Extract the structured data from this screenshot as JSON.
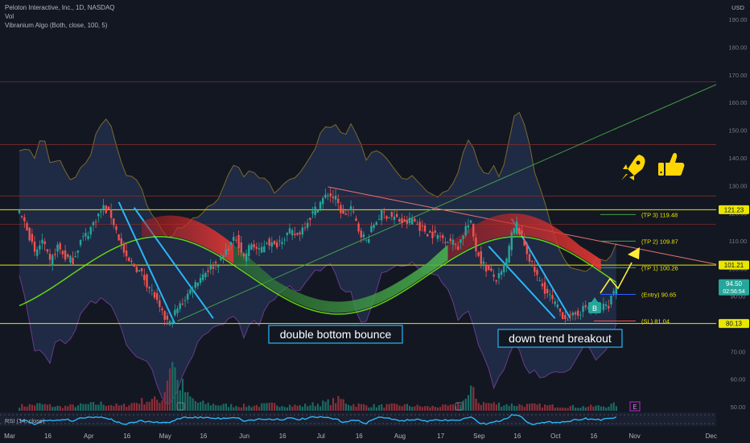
{
  "legend": {
    "symbol": "Peloton Interactive, Inc., 1D, NASDAQ",
    "vol": "Vol",
    "indicator": "Vibranium Algo (Both, close, 100, 5)"
  },
  "currency": "USD",
  "rsi_label": "RSI (14, close)",
  "chart_data": {
    "type": "candlestick",
    "ylim": [
      45,
      195
    ],
    "y_ticks": [
      "190.00",
      "180.00",
      "170.00",
      "160.00",
      "150.00",
      "140.00",
      "130.00",
      "120.00",
      "110.00",
      "100.00",
      "90.00",
      "80.00",
      "70.00",
      "60.00",
      "50.00"
    ],
    "y_tick_values": [
      190,
      180,
      170,
      160,
      150,
      140,
      130,
      120,
      110,
      100,
      90,
      80,
      70,
      60,
      50
    ],
    "x_ticks": [
      "Mar",
      "16",
      "Apr",
      "16",
      "May",
      "16",
      "Jun",
      "16",
      "Jul",
      "16",
      "Aug",
      "17",
      "Sep",
      "16",
      "Oct",
      "16",
      "Nov",
      "Dec"
    ],
    "x_tick_days": [
      0,
      15,
      31,
      46,
      61,
      76,
      92,
      107,
      122,
      137,
      153,
      169,
      184,
      199,
      214,
      229,
      245,
      275
    ],
    "price_labels": [
      {
        "value": 121.23,
        "text": "121.23",
        "color": "#e9e600",
        "text_color": "#131722"
      },
      {
        "value": 101.21,
        "text": "101.21",
        "color": "#e9e600",
        "text_color": "#131722"
      },
      {
        "value": 94.5,
        "text": "94.50",
        "sub": "02:56:54",
        "color": "#26a69a",
        "text_color": "#ffffff"
      },
      {
        "value": 80.13,
        "text": "80.13",
        "color": "#e9e600",
        "text_color": "#131722"
      }
    ],
    "levels": [
      {
        "label": "(TP 3) 119.48",
        "value": 119.48
      },
      {
        "label": "(TP 2) 109.87",
        "value": 109.87
      },
      {
        "label": "(TP 1) 100.26",
        "value": 100.26
      },
      {
        "label": "(Entry) 90.65",
        "value": 90.65
      },
      {
        "label": "(SL) 81.04",
        "value": 81.04
      }
    ],
    "horizontal_lines": [
      167.5,
      144.8,
      126.2,
      121.23,
      116.0,
      101.21,
      80.13
    ],
    "annotations": [
      "double bottom bounce",
      "down trend breakout"
    ],
    "markers": {
      "buy": "B",
      "earnings": "E"
    },
    "closes": [
      [
        0,
        120
      ],
      [
        3,
        115
      ],
      [
        6,
        105
      ],
      [
        9,
        110
      ],
      [
        12,
        102
      ],
      [
        15,
        108
      ],
      [
        18,
        104
      ],
      [
        21,
        103
      ],
      [
        24,
        110
      ],
      [
        27,
        113
      ],
      [
        30,
        118
      ],
      [
        33,
        122
      ],
      [
        36,
        119
      ],
      [
        39,
        111
      ],
      [
        42,
        103
      ],
      [
        45,
        101
      ],
      [
        48,
        98
      ],
      [
        51,
        93
      ],
      [
        53,
        90
      ],
      [
        55,
        85
      ],
      [
        57,
        82
      ],
      [
        59,
        80
      ],
      [
        61,
        84
      ],
      [
        64,
        88
      ],
      [
        67,
        92
      ],
      [
        70,
        96
      ],
      [
        73,
        99
      ],
      [
        76,
        101
      ],
      [
        79,
        103
      ],
      [
        82,
        108
      ],
      [
        85,
        111
      ],
      [
        88,
        104
      ],
      [
        91,
        109
      ],
      [
        94,
        106
      ],
      [
        97,
        110
      ],
      [
        100,
        108
      ],
      [
        103,
        111
      ],
      [
        106,
        113
      ],
      [
        109,
        112
      ],
      [
        112,
        116
      ],
      [
        115,
        120
      ],
      [
        118,
        124
      ],
      [
        121,
        127
      ],
      [
        124,
        125
      ],
      [
        127,
        119
      ],
      [
        130,
        122
      ],
      [
        133,
        114
      ],
      [
        136,
        110
      ],
      [
        139,
        116
      ],
      [
        142,
        120
      ],
      [
        145,
        119
      ],
      [
        148,
        118
      ],
      [
        151,
        116
      ],
      [
        154,
        118
      ],
      [
        157,
        115
      ],
      [
        160,
        113
      ],
      [
        163,
        112
      ],
      [
        166,
        111
      ],
      [
        169,
        110
      ],
      [
        172,
        108
      ],
      [
        175,
        115
      ],
      [
        177,
        116
      ],
      [
        179,
        107
      ],
      [
        181,
        103
      ],
      [
        183,
        100
      ],
      [
        185,
        98
      ],
      [
        187,
        96
      ],
      [
        189,
        98
      ],
      [
        191,
        103
      ],
      [
        193,
        112
      ],
      [
        195,
        116
      ],
      [
        197,
        111
      ],
      [
        199,
        106
      ],
      [
        201,
        101
      ],
      [
        204,
        95
      ],
      [
        207,
        91
      ],
      [
        210,
        87
      ],
      [
        213,
        83
      ],
      [
        216,
        82
      ],
      [
        219,
        84
      ],
      [
        222,
        86
      ],
      [
        225,
        85
      ],
      [
        228,
        86
      ],
      [
        231,
        87
      ],
      [
        234,
        94.5
      ]
    ],
    "volume_profile": [
      [
        0,
        6
      ],
      [
        8,
        8
      ],
      [
        16,
        5
      ],
      [
        24,
        7
      ],
      [
        32,
        9
      ],
      [
        40,
        6
      ],
      [
        48,
        12
      ],
      [
        56,
        14
      ],
      [
        60,
        70
      ],
      [
        62,
        35
      ],
      [
        64,
        30
      ],
      [
        66,
        18
      ],
      [
        70,
        10
      ],
      [
        80,
        7
      ],
      [
        90,
        6
      ],
      [
        100,
        8
      ],
      [
        110,
        6
      ],
      [
        120,
        10
      ],
      [
        126,
        14
      ],
      [
        130,
        8
      ],
      [
        140,
        6
      ],
      [
        150,
        7
      ],
      [
        160,
        5
      ],
      [
        170,
        6
      ],
      [
        176,
        16
      ],
      [
        178,
        30
      ],
      [
        180,
        10
      ],
      [
        190,
        8
      ],
      [
        200,
        7
      ],
      [
        210,
        6
      ],
      [
        220,
        5
      ],
      [
        230,
        6
      ],
      [
        234,
        8
      ]
    ]
  }
}
